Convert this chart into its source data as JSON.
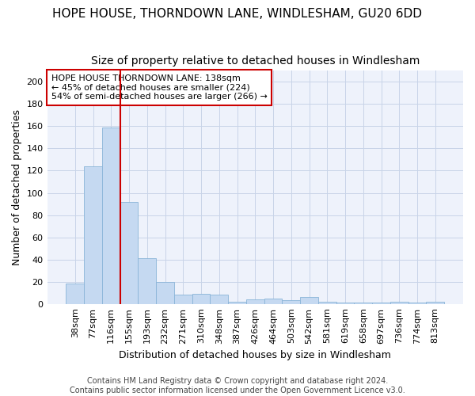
{
  "title1": "HOPE HOUSE, THORNDOWN LANE, WINDLESHAM, GU20 6DD",
  "title2": "Size of property relative to detached houses in Windlesham",
  "xlabel": "Distribution of detached houses by size in Windlesham",
  "ylabel": "Number of detached properties",
  "categories": [
    "38sqm",
    "77sqm",
    "116sqm",
    "155sqm",
    "193sqm",
    "232sqm",
    "271sqm",
    "310sqm",
    "348sqm",
    "387sqm",
    "426sqm",
    "464sqm",
    "503sqm",
    "542sqm",
    "581sqm",
    "619sqm",
    "658sqm",
    "697sqm",
    "736sqm",
    "774sqm",
    "813sqm"
  ],
  "values": [
    18,
    124,
    159,
    92,
    41,
    20,
    8,
    9,
    8,
    2,
    4,
    5,
    3,
    6,
    2,
    1,
    1,
    1,
    2,
    1,
    2
  ],
  "bar_color": "#c5d9f1",
  "bar_edge_color": "#8ab4d8",
  "vline_color": "#cc0000",
  "vline_x": 2.5,
  "annotation_text": "HOPE HOUSE THORNDOWN LANE: 138sqm\n← 45% of detached houses are smaller (224)\n54% of semi-detached houses are larger (266) →",
  "annotation_box_color": "#ffffff",
  "annotation_box_edge": "#cc0000",
  "ylim": [
    0,
    210
  ],
  "yticks": [
    0,
    20,
    40,
    60,
    80,
    100,
    120,
    140,
    160,
    180,
    200
  ],
  "footer1": "Contains HM Land Registry data © Crown copyright and database right 2024.",
  "footer2": "Contains public sector information licensed under the Open Government Licence v3.0.",
  "bg_color": "#ffffff",
  "plot_bg_color": "#eef2fb",
  "grid_color": "#c8d4e8",
  "title1_fontsize": 11,
  "title2_fontsize": 10,
  "axis_label_fontsize": 9,
  "tick_fontsize": 8,
  "annotation_fontsize": 8,
  "footer_fontsize": 7
}
